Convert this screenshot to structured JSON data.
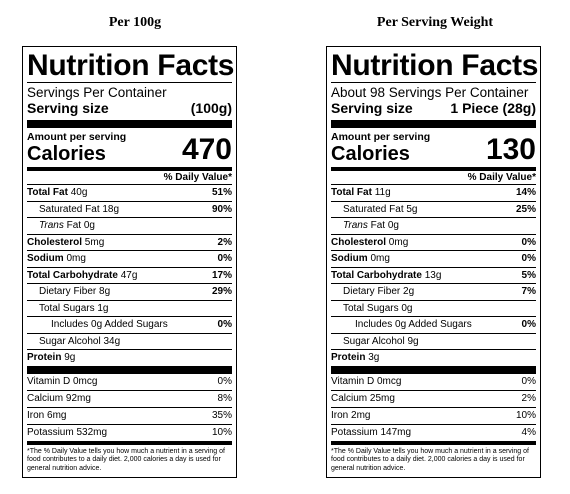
{
  "labels": [
    {
      "heading": "Per 100g",
      "title": "Nutrition Facts",
      "servings": "Servings Per Container",
      "serving_size_label": "Serving size",
      "serving_size_value": "(100g)",
      "amount_per_serving": "Amount per serving",
      "calories_label": "Calories",
      "calories_value": "470",
      "daily_value_header": "% Daily Value*",
      "total_fat": {
        "label": "Total Fat",
        "amount": "40g",
        "dv": "51%"
      },
      "saturated_fat": {
        "label": "Saturated Fat",
        "amount": "18g",
        "dv": "90%"
      },
      "trans_fat": {
        "label": "Trans",
        "label2": "Fat",
        "amount": "0g"
      },
      "cholesterol": {
        "label": "Cholesterol",
        "amount": "5mg",
        "dv": "2%"
      },
      "sodium": {
        "label": "Sodium",
        "amount": "0mg",
        "dv": "0%"
      },
      "total_carb": {
        "label": "Total Carbohydrate",
        "amount": "47g",
        "dv": "17%"
      },
      "fiber": {
        "label": "Dietary Fiber",
        "amount": "8g",
        "dv": "29%"
      },
      "total_sugars": {
        "label": "Total Sugars",
        "amount": "1g"
      },
      "added_sugars": {
        "label": "Includes 0g Added Sugars",
        "dv": "0%"
      },
      "sugar_alcohol": {
        "label": "Sugar Alcohol",
        "amount": "34g"
      },
      "protein": {
        "label": "Protein",
        "amount": "9g"
      },
      "vitamin_d": {
        "label": "Vitamin D 0mcg",
        "dv": "0%"
      },
      "calcium": {
        "label": "Calcium 92mg",
        "dv": "8%"
      },
      "iron": {
        "label": "Iron 6mg",
        "dv": "35%"
      },
      "potassium": {
        "label": "Potassium 532mg",
        "dv": "10%"
      },
      "footnote": "*The % Daily Value tells you how much a nutrient in a serving of food contributes to a daily diet. 2,000 calories a day is used for general nutrition advice."
    },
    {
      "heading": "Per Serving Weight",
      "title": "Nutrition Facts",
      "servings": "About 98 Servings Per Container",
      "serving_size_label": "Serving size",
      "serving_size_value": "1 Piece (28g)",
      "amount_per_serving": "Amount per serving",
      "calories_label": "Calories",
      "calories_value": "130",
      "daily_value_header": "% Daily Value*",
      "total_fat": {
        "label": "Total Fat",
        "amount": "11g",
        "dv": "14%"
      },
      "saturated_fat": {
        "label": "Saturated Fat",
        "amount": "5g",
        "dv": "25%"
      },
      "trans_fat": {
        "label": "Trans",
        "label2": "Fat",
        "amount": "0g"
      },
      "cholesterol": {
        "label": "Cholesterol",
        "amount": "0mg",
        "dv": "0%"
      },
      "sodium": {
        "label": "Sodium",
        "amount": "0mg",
        "dv": "0%"
      },
      "total_carb": {
        "label": "Total Carbohydrate",
        "amount": "13g",
        "dv": "5%"
      },
      "fiber": {
        "label": "Dietary Fiber",
        "amount": "2g",
        "dv": "7%"
      },
      "total_sugars": {
        "label": "Total Sugars",
        "amount": "0g"
      },
      "added_sugars": {
        "label": "Includes 0g Added Sugars",
        "dv": "0%"
      },
      "sugar_alcohol": {
        "label": "Sugar Alcohol",
        "amount": "9g"
      },
      "protein": {
        "label": "Protein",
        "amount": "3g"
      },
      "vitamin_d": {
        "label": "Vitamin D 0mcg",
        "dv": "0%"
      },
      "calcium": {
        "label": "Calcium 25mg",
        "dv": "2%"
      },
      "iron": {
        "label": "Iron 2mg",
        "dv": "10%"
      },
      "potassium": {
        "label": "Potassium 147mg",
        "dv": "4%"
      },
      "footnote": "*The % Daily Value tells you how much a nutrient in a serving of food contributes to a daily diet. 2,000 calories a day is used for general nutrition advice."
    }
  ]
}
